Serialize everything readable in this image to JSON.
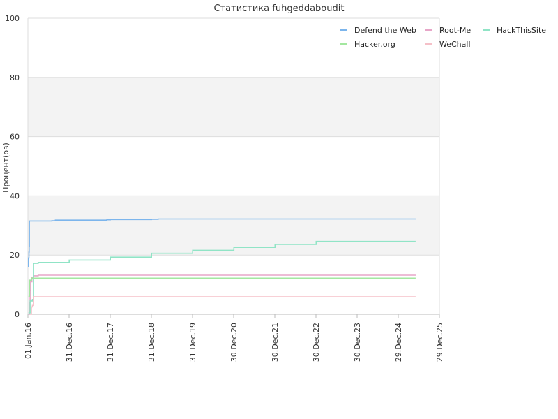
{
  "chart_data": {
    "type": "line",
    "title": "Статистика fuhgeddaboudit",
    "ylabel": "Процент(ов)",
    "xlabel": "",
    "ylim": [
      0,
      100
    ],
    "yticks": [
      0,
      20,
      40,
      60,
      80,
      100
    ],
    "xlim": [
      "2016-01-01",
      "2025-12-29"
    ],
    "xticks": [
      {
        "date": "2016-01-01",
        "label": "01.Jan.16"
      },
      {
        "date": "2016-12-31",
        "label": "31.Dec.16"
      },
      {
        "date": "2017-12-31",
        "label": "31.Dec.17"
      },
      {
        "date": "2018-12-31",
        "label": "31.Dec.18"
      },
      {
        "date": "2019-12-31",
        "label": "31.Dec.19"
      },
      {
        "date": "2020-12-30",
        "label": "30.Dec.20"
      },
      {
        "date": "2021-12-30",
        "label": "30.Dec.21"
      },
      {
        "date": "2022-12-30",
        "label": "30.Dec.22"
      },
      {
        "date": "2023-12-30",
        "label": "30.Dec.23"
      },
      {
        "date": "2024-12-29",
        "label": "29.Dec.24"
      },
      {
        "date": "2025-12-29",
        "label": "29.Dec.25"
      }
    ],
    "banded_background": true,
    "band_color": "#f3f3f3",
    "legend_position": "top-right",
    "series": [
      {
        "name": "Defend the Web",
        "color": "#7cb5ec",
        "points": [
          [
            "2016-01-06",
            16
          ],
          [
            "2016-01-06",
            19
          ],
          [
            "2016-01-10",
            21
          ],
          [
            "2016-01-12",
            23
          ],
          [
            "2016-01-14",
            31.5
          ],
          [
            "2016-08-01",
            31.6
          ],
          [
            "2016-09-01",
            31.8
          ],
          [
            "2017-12-01",
            31.9
          ],
          [
            "2018-01-01",
            32.0
          ],
          [
            "2019-01-01",
            32.1
          ],
          [
            "2019-03-01",
            32.2
          ],
          [
            "2025-06-01",
            32.3
          ]
        ]
      },
      {
        "name": "Root-Me",
        "color": "#e7a6c8",
        "points": [
          [
            "2016-01-10",
            0
          ],
          [
            "2016-01-15",
            4
          ],
          [
            "2016-01-20",
            8
          ],
          [
            "2016-01-25",
            11
          ],
          [
            "2016-02-05",
            12.5
          ],
          [
            "2016-02-20",
            13.0
          ],
          [
            "2016-04-01",
            13.2
          ],
          [
            "2025-06-01",
            13.3
          ]
        ]
      },
      {
        "name": "HackThisSite",
        "color": "#90e4c6",
        "points": [
          [
            "2016-01-06",
            0.5
          ],
          [
            "2016-01-20",
            4.5
          ],
          [
            "2016-02-10",
            5
          ],
          [
            "2016-02-20",
            17.2
          ],
          [
            "2016-04-01",
            17.5
          ],
          [
            "2017-01-01",
            18.3
          ],
          [
            "2018-01-01",
            19.3
          ],
          [
            "2019-01-01",
            20.6
          ],
          [
            "2020-01-01",
            21.6
          ],
          [
            "2021-01-01",
            22.6
          ],
          [
            "2022-01-01",
            23.6
          ],
          [
            "2023-01-01",
            24.6
          ],
          [
            "2025-06-01",
            24.6
          ]
        ]
      },
      {
        "name": "Hacker.org",
        "color": "#a3e7a0",
        "points": [
          [
            "2016-01-06",
            6
          ],
          [
            "2016-01-15",
            11.5
          ],
          [
            "2016-02-01",
            12.2
          ],
          [
            "2025-06-01",
            12.2
          ]
        ]
      },
      {
        "name": "WeChall",
        "color": "#f5c0c8",
        "points": [
          [
            "2016-01-20",
            0
          ],
          [
            "2016-02-01",
            2.5
          ],
          [
            "2016-02-10",
            3
          ],
          [
            "2016-02-20",
            5.9
          ],
          [
            "2025-06-01",
            5.9
          ]
        ]
      }
    ]
  }
}
